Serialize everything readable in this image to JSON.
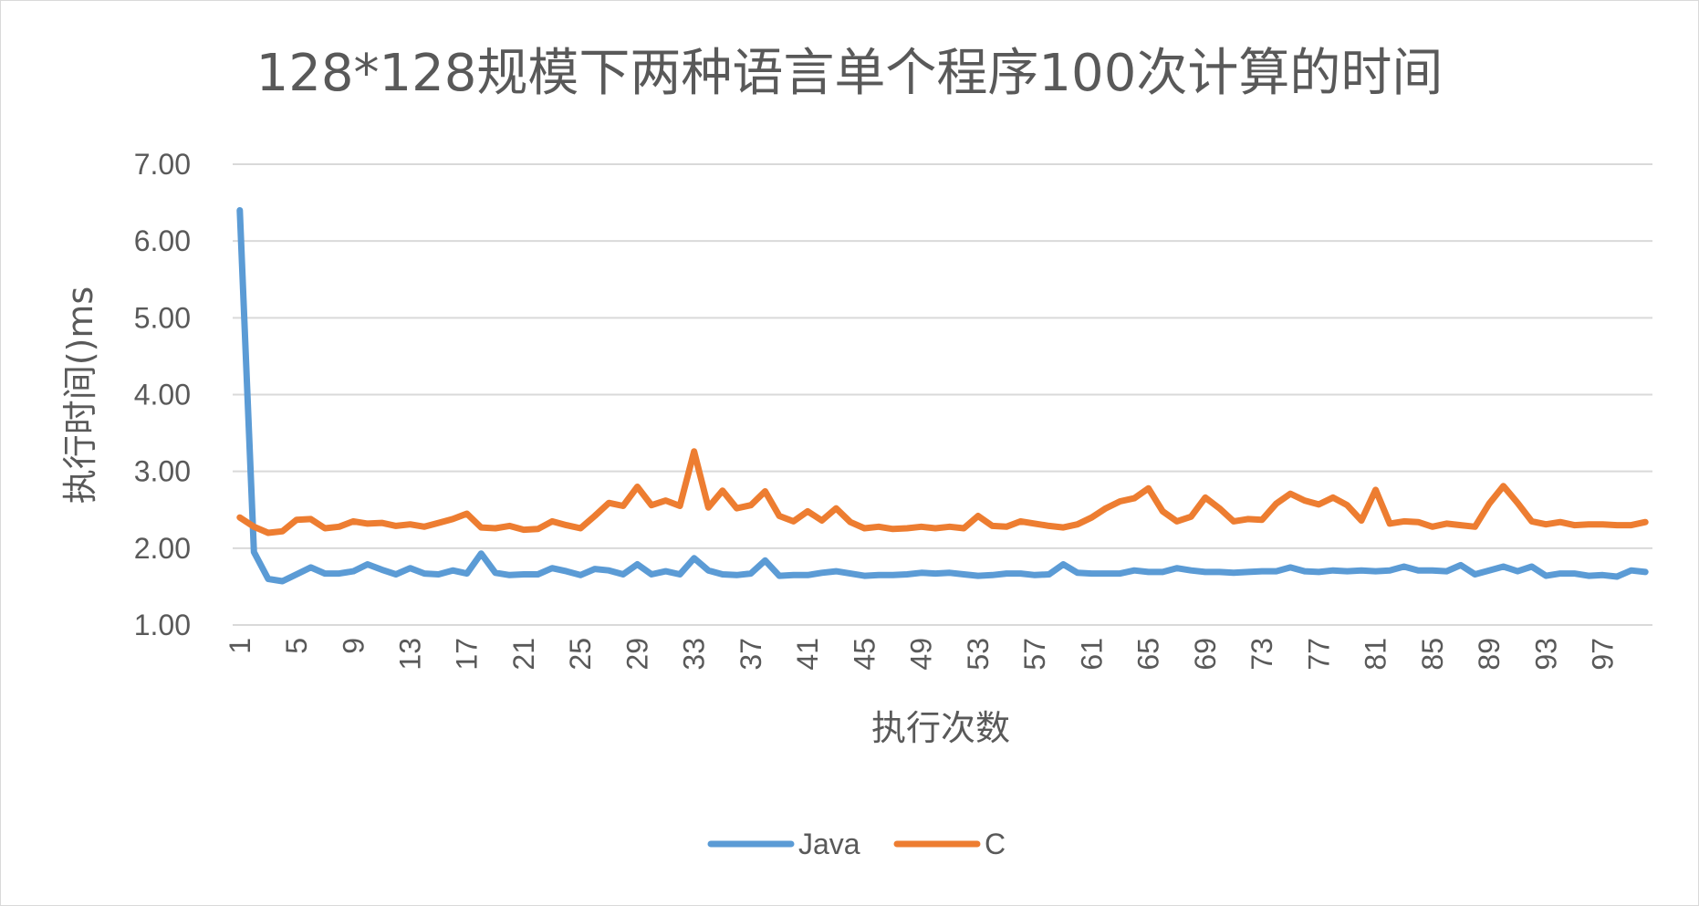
{
  "chart_data": {
    "type": "line",
    "title": "128*128规模下两种语言单个程序100次计算的时间",
    "xlabel": "执行次数",
    "ylabel": "执行时间()ms",
    "ylim": [
      1.0,
      7.0
    ],
    "yticks": [
      "1.00",
      "2.00",
      "3.00",
      "4.00",
      "5.00",
      "6.00",
      "7.00"
    ],
    "xtick_labels": [
      "1",
      "5",
      "9",
      "13",
      "17",
      "21",
      "25",
      "29",
      "33",
      "37",
      "41",
      "45",
      "49",
      "53",
      "57",
      "61",
      "65",
      "69",
      "73",
      "77",
      "81",
      "85",
      "89",
      "93",
      "97"
    ],
    "x": [
      1,
      2,
      3,
      4,
      5,
      6,
      7,
      8,
      9,
      10,
      11,
      12,
      13,
      14,
      15,
      16,
      17,
      18,
      19,
      20,
      21,
      22,
      23,
      24,
      25,
      26,
      27,
      28,
      29,
      30,
      31,
      32,
      33,
      34,
      35,
      36,
      37,
      38,
      39,
      40,
      41,
      42,
      43,
      44,
      45,
      46,
      47,
      48,
      49,
      50,
      51,
      52,
      53,
      54,
      55,
      56,
      57,
      58,
      59,
      60,
      61,
      62,
      63,
      64,
      65,
      66,
      67,
      68,
      69,
      70,
      71,
      72,
      73,
      74,
      75,
      76,
      77,
      78,
      79,
      80,
      81,
      82,
      83,
      84,
      85,
      86,
      87,
      88,
      89,
      90,
      91,
      92,
      93,
      94,
      95,
      96,
      97,
      98,
      99,
      100
    ],
    "grid": true,
    "legend_position": "bottom",
    "series": [
      {
        "name": "Java",
        "color": "#5B9BD5",
        "values": [
          6.4,
          1.95,
          1.6,
          1.57,
          1.66,
          1.75,
          1.67,
          1.67,
          1.7,
          1.79,
          1.72,
          1.66,
          1.74,
          1.67,
          1.66,
          1.71,
          1.67,
          1.93,
          1.68,
          1.65,
          1.66,
          1.66,
          1.74,
          1.7,
          1.65,
          1.73,
          1.71,
          1.66,
          1.79,
          1.66,
          1.7,
          1.66,
          1.87,
          1.71,
          1.66,
          1.65,
          1.67,
          1.84,
          1.64,
          1.65,
          1.65,
          1.68,
          1.7,
          1.67,
          1.64,
          1.65,
          1.65,
          1.66,
          1.68,
          1.67,
          1.68,
          1.66,
          1.64,
          1.65,
          1.67,
          1.67,
          1.65,
          1.66,
          1.79,
          1.68,
          1.67,
          1.67,
          1.67,
          1.71,
          1.69,
          1.69,
          1.74,
          1.71,
          1.69,
          1.69,
          1.68,
          1.69,
          1.7,
          1.7,
          1.75,
          1.7,
          1.69,
          1.71,
          1.7,
          1.71,
          1.7,
          1.71,
          1.76,
          1.71,
          1.71,
          1.7,
          1.78,
          1.66,
          1.71,
          1.76,
          1.7,
          1.76,
          1.64,
          1.67,
          1.67,
          1.64,
          1.65,
          1.63,
          1.71,
          1.69
        ]
      },
      {
        "name": "C",
        "color": "#ED7D31",
        "values": [
          2.4,
          2.28,
          2.2,
          2.22,
          2.37,
          2.38,
          2.26,
          2.28,
          2.35,
          2.32,
          2.33,
          2.29,
          2.31,
          2.28,
          2.33,
          2.38,
          2.45,
          2.27,
          2.26,
          2.29,
          2.24,
          2.25,
          2.35,
          2.3,
          2.26,
          2.42,
          2.59,
          2.55,
          2.8,
          2.56,
          2.62,
          2.55,
          3.26,
          2.53,
          2.75,
          2.52,
          2.56,
          2.74,
          2.42,
          2.35,
          2.48,
          2.36,
          2.52,
          2.34,
          2.26,
          2.28,
          2.25,
          2.26,
          2.28,
          2.26,
          2.28,
          2.26,
          2.42,
          2.29,
          2.28,
          2.35,
          2.32,
          2.29,
          2.27,
          2.31,
          2.4,
          2.52,
          2.61,
          2.65,
          2.78,
          2.48,
          2.35,
          2.41,
          2.66,
          2.52,
          2.35,
          2.38,
          2.37,
          2.58,
          2.71,
          2.62,
          2.57,
          2.66,
          2.56,
          2.36,
          2.76,
          2.32,
          2.35,
          2.34,
          2.28,
          2.32,
          2.3,
          2.28,
          2.58,
          2.81,
          2.59,
          2.35,
          2.31,
          2.34,
          2.3,
          2.31,
          2.31,
          2.3,
          2.3,
          2.34
        ]
      }
    ]
  }
}
